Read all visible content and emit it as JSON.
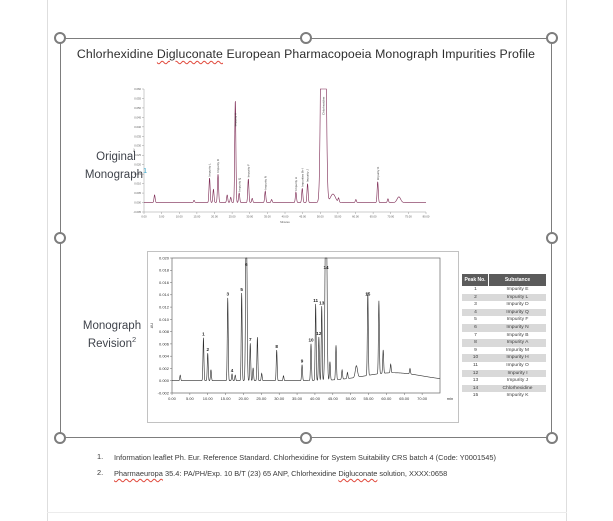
{
  "title": {
    "segments": [
      {
        "text": "Chlorhexidine "
      },
      {
        "text": "Digluconate",
        "misspelled": true
      },
      {
        "text": " European Pharmacopoeia Monograph Impurities Profile"
      }
    ]
  },
  "side_labels": {
    "original": {
      "text": "Original Monograph",
      "sup": "1",
      "sup_color": "#3fa9cc"
    },
    "revision": {
      "text": "Monograph Revision",
      "sup": "2",
      "sup_color": "#4a4e55"
    }
  },
  "peak_table": {
    "headers": [
      "Peak No.",
      "Substance"
    ],
    "rows": [
      [
        "1",
        "Impurity E"
      ],
      [
        "2",
        "Impurity L"
      ],
      [
        "3",
        "Impurity D"
      ],
      [
        "4",
        "Impurity Q"
      ],
      [
        "5",
        "Impurity F"
      ],
      [
        "6",
        "Impurity N"
      ],
      [
        "7",
        "Impurity B"
      ],
      [
        "8",
        "Impurity A"
      ],
      [
        "9",
        "Impurity M"
      ],
      [
        "10",
        "Impurity H"
      ],
      [
        "11",
        "Impurity O"
      ],
      [
        "12",
        "Impurity I"
      ],
      [
        "13",
        "Impurity J"
      ],
      [
        "14",
        "Chlorhexidine"
      ],
      [
        "15",
        "Impurity K"
      ]
    ]
  },
  "footnotes": [
    {
      "num": "1.",
      "segments": [
        {
          "text": "Information leaflet Ph. Eur. Reference Standard. Chlorhexidine for System Suitability CRS batch 4 (Code: Y0001545)"
        }
      ]
    },
    {
      "num": "2.",
      "segments": [
        {
          "text": "Pharmaeuropa",
          "misspelled": true
        },
        {
          "text": " 35.4: PA/PH/Exp. 10 B/T (23) 65 ANP, Chlorhexidine "
        },
        {
          "text": "Digluconate",
          "misspelled": true
        },
        {
          "text": " solution, XXXX:0658"
        }
      ]
    }
  ],
  "colors": {
    "selection": "#7d7d7d",
    "squiggle": "#e0473a",
    "table_header_bg": "#5b5b5b",
    "table_header_text": "#ffffff",
    "table_row_alt_bg": "#d9d9d9",
    "trace_original": "#7a2550",
    "trace_revision": "#2b2b2b"
  },
  "chart_data": [
    {
      "id": "original_monograph",
      "type": "line",
      "title": "",
      "xlabel": "Minutes",
      "ylabel": "AU",
      "xlim": [
        0,
        80
      ],
      "ylim": [
        -0.005,
        0.06
      ],
      "grid": false,
      "sigma": 0.16,
      "trace_color": "#7a2550",
      "x_ticks": [
        "0.00",
        "5.00",
        "10.00",
        "15.00",
        "20.00",
        "25.00",
        "30.00",
        "35.00",
        "40.00",
        "45.00",
        "50.00",
        "55.00",
        "60.00",
        "65.00",
        "70.00",
        "75.00",
        "80.00"
      ],
      "y_ticks": [
        "0.060",
        "0.055",
        "0.050",
        "0.045",
        "0.040",
        "0.035",
        "0.030",
        "0.025",
        "0.020",
        "0.015",
        "0.010",
        "0.005",
        "0.000",
        "-0.005"
      ],
      "peaks": [
        {
          "t": 3.0,
          "h": 0.004
        },
        {
          "t": 14.2,
          "h": 0.0012
        },
        {
          "t": 18.6,
          "h": 0.013,
          "label": "Impurity L"
        },
        {
          "t": 19.7,
          "h": 0.007
        },
        {
          "t": 21.0,
          "h": 0.015,
          "label": "Impurity D"
        },
        {
          "t": 23.6,
          "h": 0.004
        },
        {
          "t": 24.6,
          "h": 0.0028
        },
        {
          "t": 25.9,
          "h": 0.054,
          "label": "Impurity A"
        },
        {
          "t": 27.0,
          "h": 0.005,
          "label": "Impurity Q"
        },
        {
          "t": 29.6,
          "h": 0.0125,
          "label": "Impurity F"
        },
        {
          "t": 30.7,
          "h": 0.0022
        },
        {
          "t": 34.4,
          "h": 0.006,
          "label": "Impurity N"
        },
        {
          "t": 36.2,
          "h": 0.0016
        },
        {
          "t": 43.1,
          "h": 0.0055,
          "label": "Impurity H"
        },
        {
          "t": 44.9,
          "h": 0.0075,
          "label": "Impurities B+I"
        },
        {
          "t": 46.4,
          "h": 0.01,
          "label": "Impurity J"
        },
        {
          "t": 50.9,
          "h": 0.4,
          "label": "Chlorhexidine",
          "sigma": 0.45
        },
        {
          "t": 53.6,
          "h": 0.0045,
          "sigma": 0.7
        },
        {
          "t": 55.2,
          "h": 0.0022
        },
        {
          "t": 60.1,
          "h": 0.0016
        },
        {
          "t": 66.3,
          "h": 0.011,
          "label": "Impurity K"
        },
        {
          "t": 69.2,
          "h": 0.002
        },
        {
          "t": 72.3,
          "h": 0.003,
          "sigma": 0.5
        }
      ]
    },
    {
      "id": "monograph_revision",
      "type": "line",
      "title": "",
      "xlabel": "",
      "x_unit": "min",
      "ylabel": "AU",
      "xlim": [
        0,
        75
      ],
      "ylim": [
        -0.002,
        0.02
      ],
      "grid": false,
      "sigma": 0.13,
      "trace_color": "#2b2b2b",
      "x_ticks": [
        "0.00",
        "5.00",
        "10.00",
        "15.00",
        "20.00",
        "25.00",
        "30.00",
        "35.00",
        "40.00",
        "45.00",
        "50.00",
        "55.00",
        "60.00",
        "65.00",
        "70.00"
      ],
      "y_ticks": [
        "0.020",
        "0.018",
        "0.016",
        "0.014",
        "0.012",
        "0.010",
        "0.008",
        "0.006",
        "0.004",
        "0.002",
        "0.000",
        "-0.002"
      ],
      "peaks": [
        {
          "t": 2.3,
          "h": 0.0009
        },
        {
          "t": 8.8,
          "h": 0.007,
          "num": "1"
        },
        {
          "t": 10.0,
          "h": 0.0045,
          "num": "2"
        },
        {
          "t": 10.9,
          "h": 0.0018
        },
        {
          "t": 15.6,
          "h": 0.0135,
          "num": "3"
        },
        {
          "t": 16.8,
          "h": 0.0011,
          "num": "4"
        },
        {
          "t": 17.7,
          "h": 0.0009
        },
        {
          "t": 19.5,
          "h": 0.0143,
          "num": "5"
        },
        {
          "t": 20.8,
          "h": 0.032,
          "num": "6",
          "label_y": 0.0187,
          "sigma": 0.18
        },
        {
          "t": 21.9,
          "h": 0.0061,
          "num": "7"
        },
        {
          "t": 22.7,
          "h": 0.0021
        },
        {
          "t": 23.9,
          "h": 0.0071
        },
        {
          "t": 25.1,
          "h": 0.0012
        },
        {
          "t": 29.3,
          "h": 0.005,
          "num": "8"
        },
        {
          "t": 31.2,
          "h": 0.0008
        },
        {
          "t": 36.4,
          "h": 0.0026,
          "num": "9"
        },
        {
          "t": 38.9,
          "h": 0.006,
          "num": "10"
        },
        {
          "t": 40.2,
          "h": 0.0125,
          "num": "11"
        },
        {
          "t": 41.1,
          "h": 0.0071,
          "num": "12"
        },
        {
          "t": 41.9,
          "h": 0.0121,
          "num": "13"
        },
        {
          "t": 43.1,
          "h": 0.042,
          "num": "14",
          "label_y": 0.0182,
          "sigma": 0.22
        },
        {
          "t": 44.2,
          "h": 0.003
        },
        {
          "t": 45.9,
          "h": 0.0056
        },
        {
          "t": 47.6,
          "h": 0.0015
        },
        {
          "t": 49.1,
          "h": 0.001
        },
        {
          "t": 51.6,
          "h": 0.0019,
          "sigma": 0.3
        },
        {
          "t": 54.8,
          "h": 0.0135,
          "num": "15"
        },
        {
          "t": 57.9,
          "h": 0.0119
        },
        {
          "t": 59.1,
          "h": 0.0038
        },
        {
          "t": 61.2,
          "h": 0.0014
        },
        {
          "t": 62.0,
          "h": 0.0013,
          "sigma": 8
        },
        {
          "t": 66.6,
          "h": 0.0009
        }
      ]
    }
  ]
}
